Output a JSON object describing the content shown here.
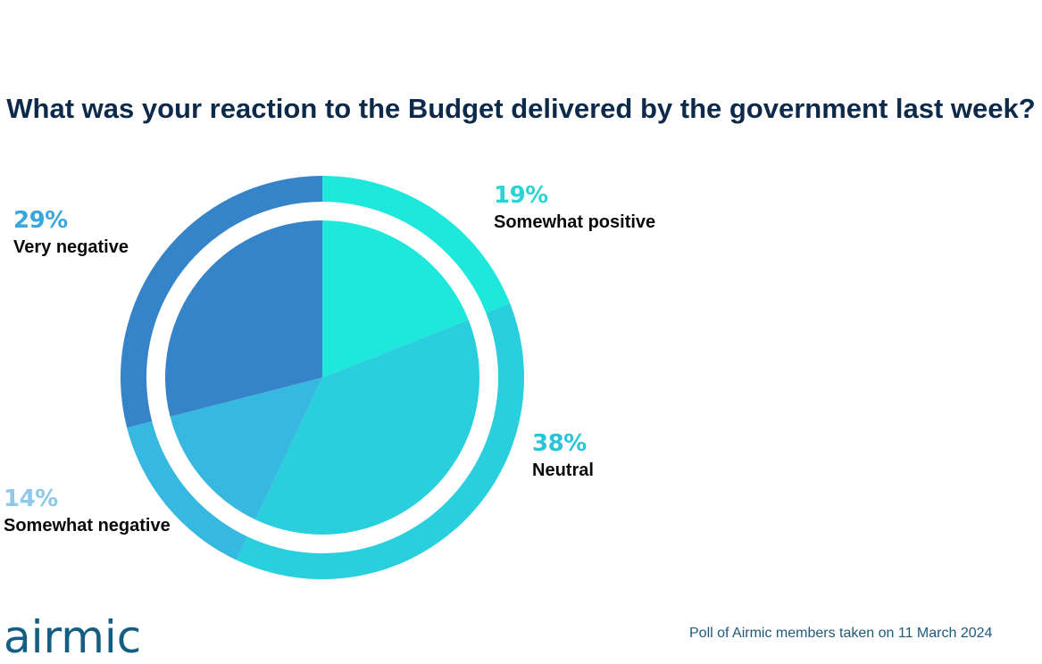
{
  "chart_data": {
    "type": "pie",
    "title": "What was your reaction to the Budget delivered by the government last week?",
    "slices": [
      {
        "label": "Somewhat positive",
        "value": 19,
        "value_label": "19%",
        "color": "#1ee8dc",
        "label_color": "#2ad4d6"
      },
      {
        "label": "Neutral",
        "value": 38,
        "value_label": "38%",
        "color": "#29cfdd",
        "label_color": "#29c4d8"
      },
      {
        "label": "Somewhat negative",
        "value": 14,
        "value_label": "14%",
        "color": "#36b8e0",
        "label_color": "#8fc8ea"
      },
      {
        "label": "Very negative",
        "value": 29,
        "value_label": "29%",
        "color": "#3583c8",
        "label_color": "#3aa6db"
      }
    ],
    "legend": "none"
  },
  "footer": {
    "logo_text": "airmic",
    "note": "Poll of Airmic members taken on 11 March 2024"
  }
}
